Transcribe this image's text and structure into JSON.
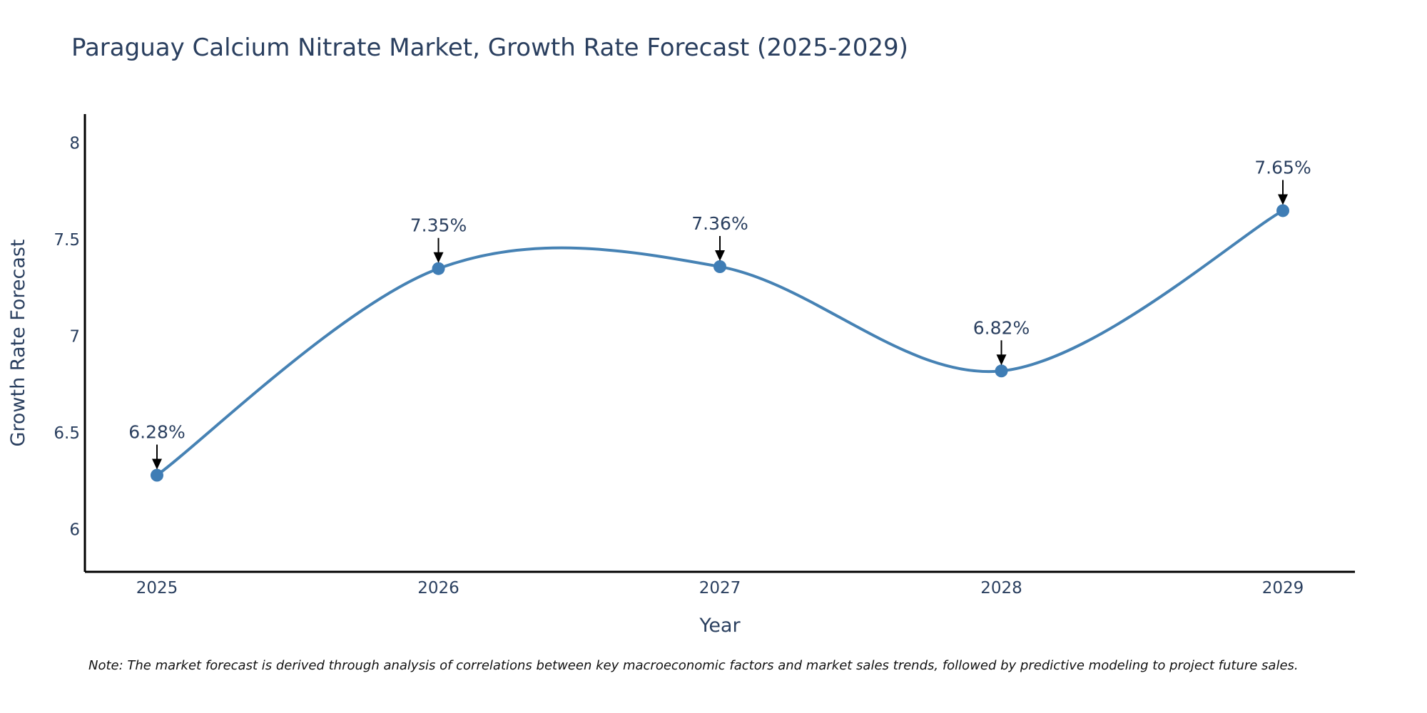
{
  "chart_data": {
    "type": "line",
    "title": "Paraguay Calcium Nitrate Market, Growth Rate Forecast (2025-2029)",
    "xlabel": "Year",
    "ylabel": "Growth Rate Forecast",
    "categories": [
      "2025",
      "2026",
      "2027",
      "2028",
      "2029"
    ],
    "series": [
      {
        "name": "Growth Rate Forecast",
        "values": [
          6.28,
          7.35,
          7.36,
          6.82,
          7.65
        ],
        "labels": [
          "6.28%",
          "7.35%",
          "7.36%",
          "6.82%",
          "7.65%"
        ],
        "color": "#4682b4"
      }
    ],
    "ylim": [
      5.78,
      8.15
    ],
    "yticks": [
      6,
      6.5,
      7,
      7.5,
      8
    ],
    "ytick_labels": [
      "6",
      "6.5",
      "7",
      "7.5",
      "8"
    ],
    "grid": false,
    "line_shape": "spline",
    "note": "Note: The market forecast is derived through analysis of correlations between key macroeconomic factors and market sales trends, followed by predictive modeling to project future sales."
  },
  "colors": {
    "line": "#4682b4",
    "marker": "#3f7db5",
    "axis": "#000000",
    "text": "#2a3f5f",
    "arrow": "#000000"
  }
}
